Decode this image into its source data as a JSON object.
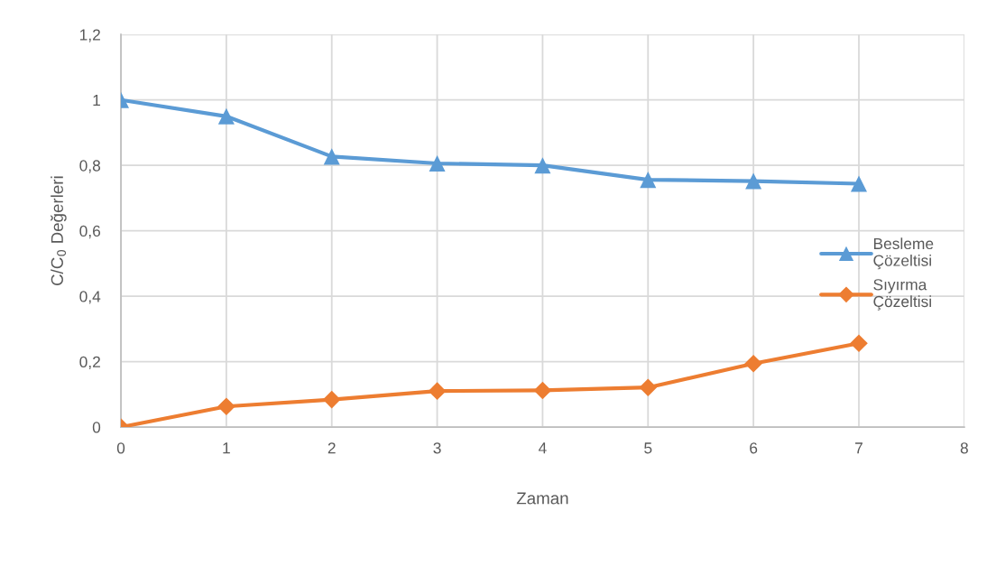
{
  "chart_data": {
    "type": "line",
    "xlabel": "Zaman",
    "ylabel": "C/C$_{0}$ Değerleri",
    "x": [
      0,
      1,
      2,
      3,
      4,
      5,
      6,
      7
    ],
    "series": [
      {
        "name": "Besleme Çözeltisi",
        "color": "#5b9bd5",
        "marker": "triangle",
        "values": [
          1.0,
          0.95,
          0.827,
          0.806,
          0.8,
          0.756,
          0.752,
          0.744
        ]
      },
      {
        "name": "Sıyırma Çözeltisi",
        "color": "#ed7d31",
        "marker": "diamond",
        "values": [
          0.0,
          0.063,
          0.084,
          0.11,
          0.112,
          0.121,
          0.194,
          0.256
        ]
      }
    ],
    "xlim": [
      0,
      8
    ],
    "xticks": [
      0,
      1,
      2,
      3,
      4,
      5,
      6,
      7,
      8
    ],
    "ylim": [
      0,
      1.2
    ],
    "yticks": [
      0,
      {
        "value": 0.2,
        "label": "0,2"
      },
      {
        "value": 0.4,
        "label": "0,4"
      },
      {
        "value": 0.6,
        "label": "0,6"
      },
      {
        "value": 0.8,
        "label": "0,8"
      },
      1,
      {
        "value": 1.2,
        "label": "1,2"
      }
    ],
    "grid": true,
    "legend": "right",
    "line_style": "solid"
  }
}
